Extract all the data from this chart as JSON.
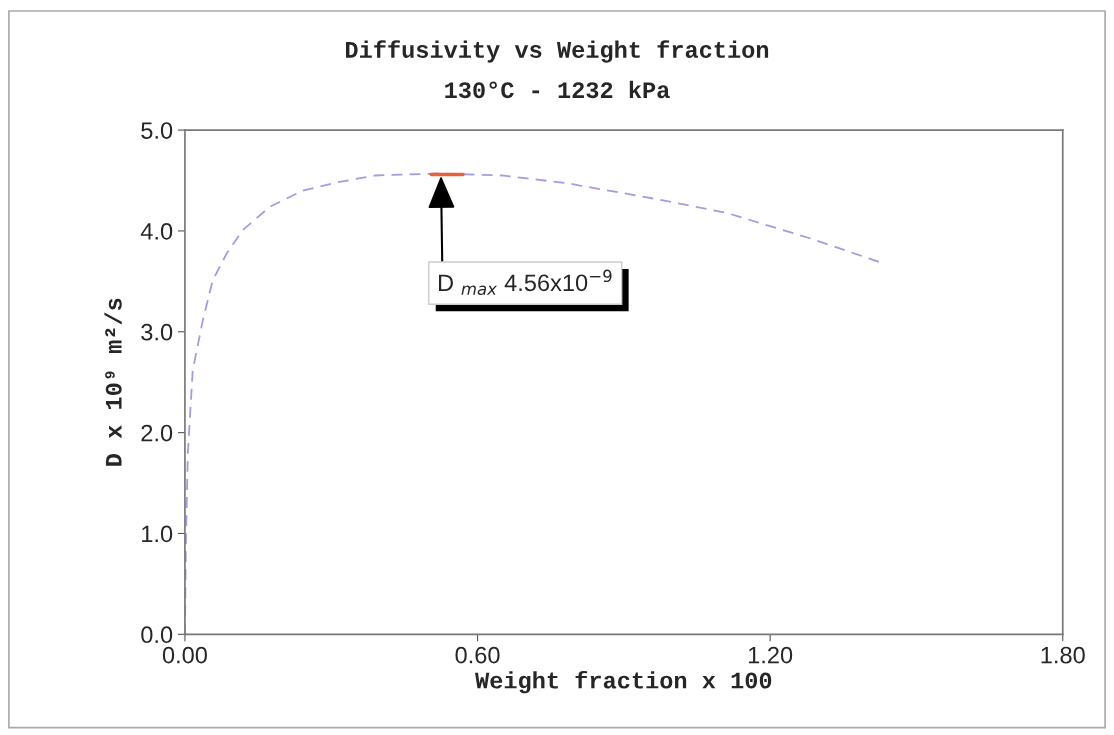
{
  "chart_data": {
    "type": "line",
    "title": "Diffusivity vs Weight fraction",
    "subtitle": "130°C - 1232 kPa",
    "xlabel": "Weight fraction x 100",
    "ylabel": "D x 10⁹ m²/s",
    "series": [
      {
        "color": "#9f9fdf",
        "line_style": "dashed",
        "x": [
          0.0,
          0.002,
          0.006,
          0.016,
          0.037,
          0.057,
          0.086,
          0.119,
          0.174,
          0.242,
          0.31,
          0.39,
          0.52,
          0.65,
          0.79,
          0.81,
          0.974,
          1.11,
          1.28,
          1.425
        ],
        "values": [
          0.0,
          0.9,
          1.8,
          2.62,
          3.12,
          3.51,
          3.78,
          4.01,
          4.24,
          4.4,
          4.48,
          4.55,
          4.57,
          4.55,
          4.47,
          4.45,
          4.31,
          4.18,
          3.93,
          3.69
        ]
      },
      {
        "color": "#e8603c",
        "line_style": "solid",
        "x": [
          0.505,
          0.57
        ],
        "values": [
          4.56,
          4.56
        ]
      }
    ],
    "annotations": [
      {
        "text": "D $_{max}$ 4.56x10$^{−9}$",
        "x": 0.525,
        "y": 4.56
      }
    ],
    "xlim": [
      0,
      1.8
    ],
    "ylim": [
      0,
      5
    ],
    "grid": false,
    "legend": false,
    "marker": "none",
    "xticks": [
      {
        "value": 0,
        "label": "0.00"
      },
      {
        "value": 0.6,
        "label": "0.60"
      },
      {
        "value": 1.2,
        "label": "1.20"
      },
      {
        "value": 1.8,
        "label": "1.80"
      }
    ],
    "yticks": [
      {
        "value": 0,
        "label": "0.0"
      },
      {
        "value": 1,
        "label": "1.0"
      },
      {
        "value": 2,
        "label": "2.0"
      },
      {
        "value": 3,
        "label": "3.0"
      },
      {
        "value": 4,
        "label": "4.0"
      },
      {
        "value": 5,
        "label": "5.0"
      }
    ]
  }
}
